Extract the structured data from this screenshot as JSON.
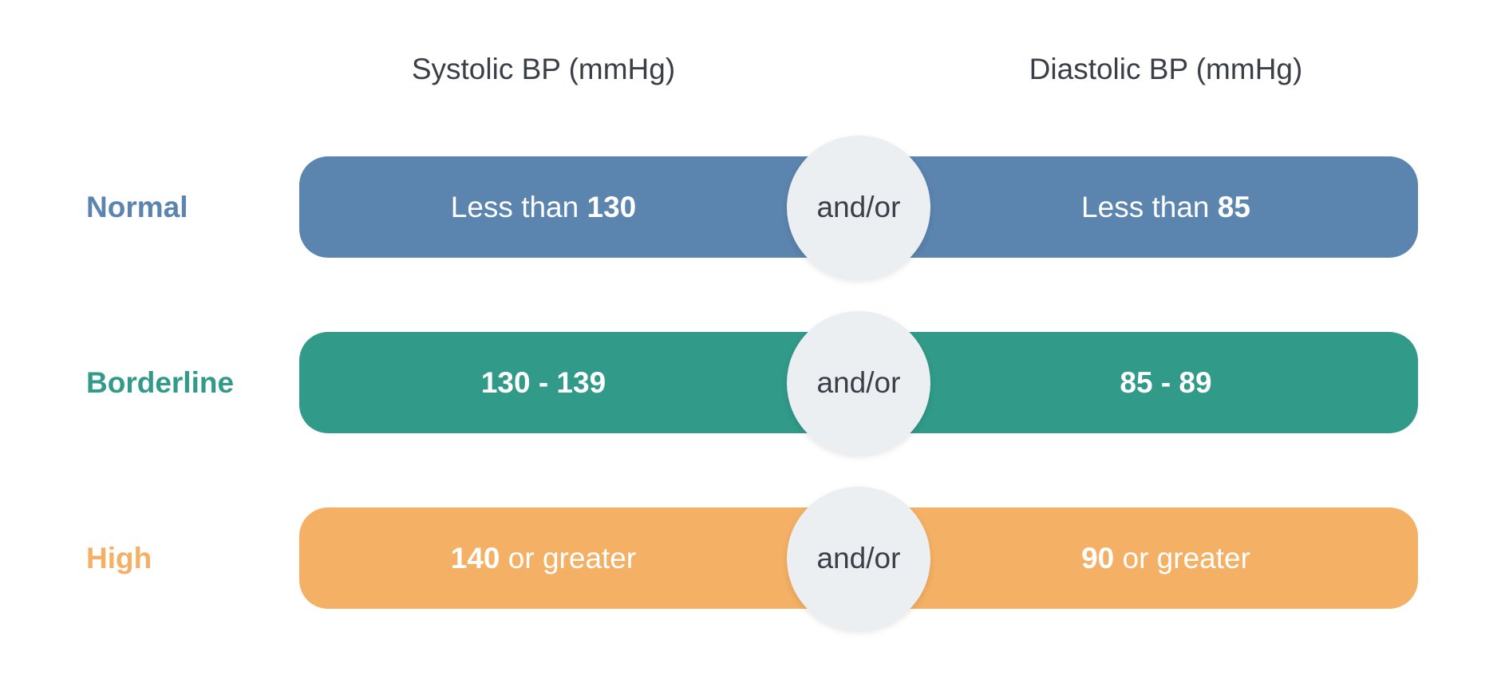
{
  "headers": {
    "systolic": "Systolic BP (mmHg)",
    "diastolic": "Diastolic BP (mmHg)"
  },
  "connector": "and/or",
  "rows": [
    {
      "label": "Normal",
      "color": "#5b84ae",
      "systolic": {
        "prefix": "Less than ",
        "value": "130",
        "suffix": ""
      },
      "diastolic": {
        "prefix": "Less than ",
        "value": "85",
        "suffix": ""
      }
    },
    {
      "label": "Borderline",
      "color": "#319a89",
      "systolic": {
        "prefix": "",
        "value": "130 - 139",
        "suffix": ""
      },
      "diastolic": {
        "prefix": "",
        "value": "85 - 89",
        "suffix": ""
      }
    },
    {
      "label": "High",
      "color": "#f4b064",
      "systolic": {
        "prefix": "",
        "value": "140",
        "suffix": " or greater"
      },
      "diastolic": {
        "prefix": "",
        "value": "90",
        "suffix": " or greater"
      }
    }
  ]
}
